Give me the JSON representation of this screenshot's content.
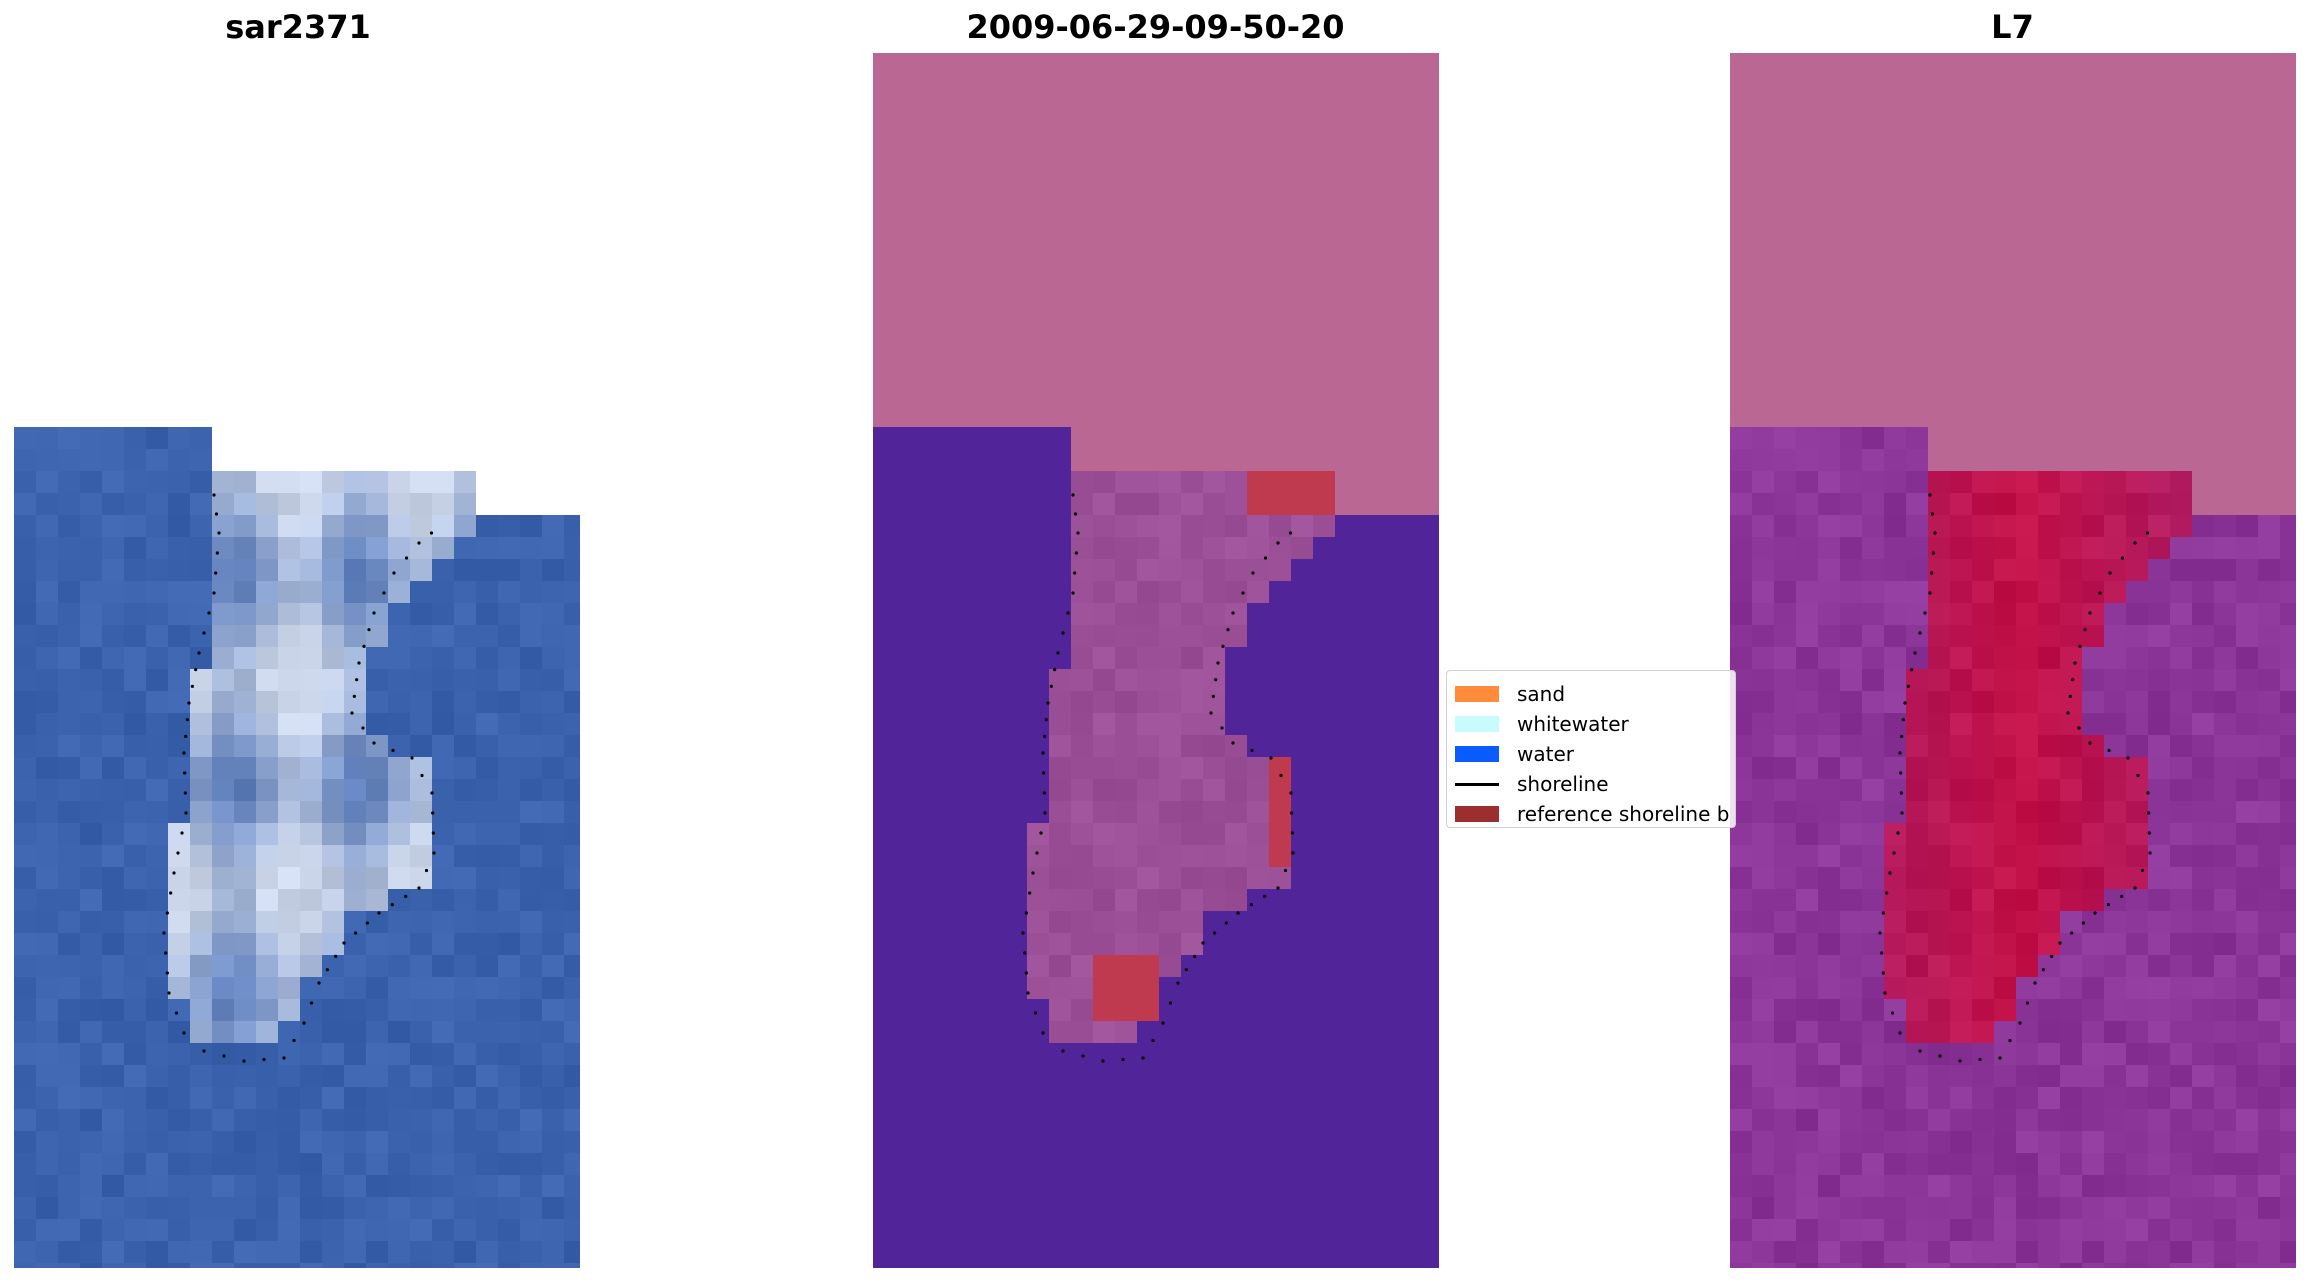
{
  "titles": {
    "left": "sar2371",
    "center": "2009-06-29-09-50-20",
    "right": "L7"
  },
  "legend": {
    "items": [
      {
        "label": "sand",
        "kind": "patch",
        "color": "#ff8c3a"
      },
      {
        "label": "whitewater",
        "kind": "patch",
        "color": "#c8fcfc"
      },
      {
        "label": "water",
        "kind": "patch",
        "color": "#0b5cff"
      },
      {
        "label": "shoreline",
        "kind": "line",
        "color": "#000000"
      },
      {
        "label": "reference shoreline b",
        "kind": "patch",
        "color": "#9b2f2f"
      }
    ]
  },
  "colors": {
    "rgb_water": "#3a62ad",
    "rgb_sand": "#c9d4e8",
    "class_nodata": "#bb6794",
    "class_water": "#52249a",
    "class_land": "#9b4f97",
    "class_reference": "#bf3a4e",
    "ndwi_nodata": "#bb6794",
    "ndwi_water": "#8c3598",
    "ndwi_land": "#c80c3e"
  }
}
